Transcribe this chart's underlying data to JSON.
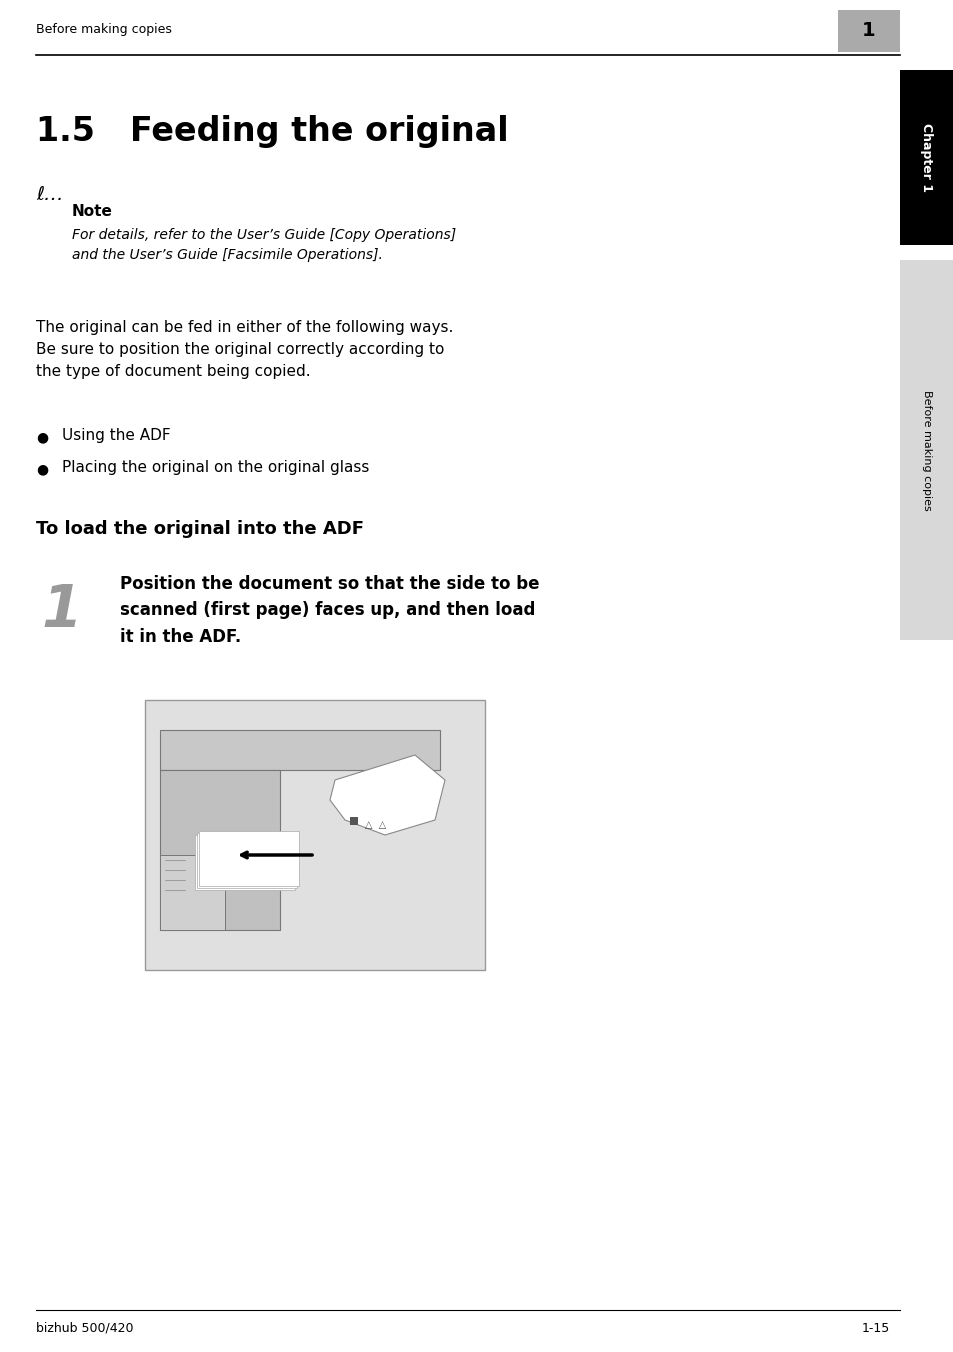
{
  "page_bg": "#ffffff",
  "header_text": "Before making copies",
  "chapter_num": "1",
  "sidebar_text": "Chapter 1",
  "sidebar2_text": "Before making copies",
  "title": "1.5   Feeding the original",
  "note_label": "Note",
  "note_body": "For details, refer to the User’s Guide [Copy Operations]\nand the User’s Guide [Facsimile Operations].",
  "body1": "The original can be fed in either of the following ways.\nBe sure to position the original correctly according to\nthe type of document being copied.",
  "bullet1": "Using the ADF",
  "bullet2": "Placing the original on the original glass",
  "subhead": "To load the original into the ADF",
  "step_num": "1",
  "step_text": "Position the document so that the side to be\nscanned (first page) faces up, and then load\nit in the ADF.",
  "footer_left": "bizhub 500/420",
  "footer_right": "1-15"
}
